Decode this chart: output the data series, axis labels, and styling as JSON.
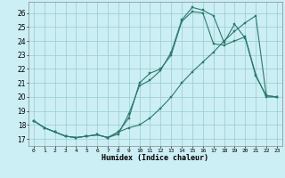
{
  "xlabel": "Humidex (Indice chaleur)",
  "xlim": [
    -0.5,
    23.5
  ],
  "ylim": [
    16.5,
    26.8
  ],
  "yticks": [
    17,
    18,
    19,
    20,
    21,
    22,
    23,
    24,
    25,
    26
  ],
  "xticks": [
    0,
    1,
    2,
    3,
    4,
    5,
    6,
    7,
    8,
    9,
    10,
    11,
    12,
    13,
    14,
    15,
    16,
    17,
    18,
    19,
    20,
    21,
    22,
    23
  ],
  "background_color": "#cceef5",
  "grid_color": "#99cccc",
  "line_color": "#2d7a6a",
  "line1_y": [
    18.3,
    17.8,
    17.5,
    17.2,
    17.1,
    17.2,
    17.3,
    17.1,
    17.35,
    18.8,
    20.8,
    21.2,
    21.9,
    23.2,
    25.5,
    26.4,
    26.2,
    25.8,
    23.9,
    25.2,
    24.2,
    21.5,
    20.1,
    20.0
  ],
  "line2_y": [
    18.3,
    17.8,
    17.5,
    17.2,
    17.1,
    17.2,
    17.3,
    17.1,
    17.5,
    18.5,
    21.0,
    21.7,
    22.0,
    23.0,
    25.4,
    26.1,
    26.0,
    23.8,
    23.7,
    24.0,
    24.3,
    21.6,
    20.0,
    20.0
  ],
  "line3_y": [
    18.3,
    17.8,
    17.5,
    17.2,
    17.1,
    17.2,
    17.3,
    17.1,
    17.5,
    17.8,
    18.0,
    18.5,
    19.2,
    20.0,
    21.0,
    21.8,
    22.5,
    23.2,
    24.0,
    24.7,
    25.3,
    25.8,
    20.1,
    20.0
  ]
}
